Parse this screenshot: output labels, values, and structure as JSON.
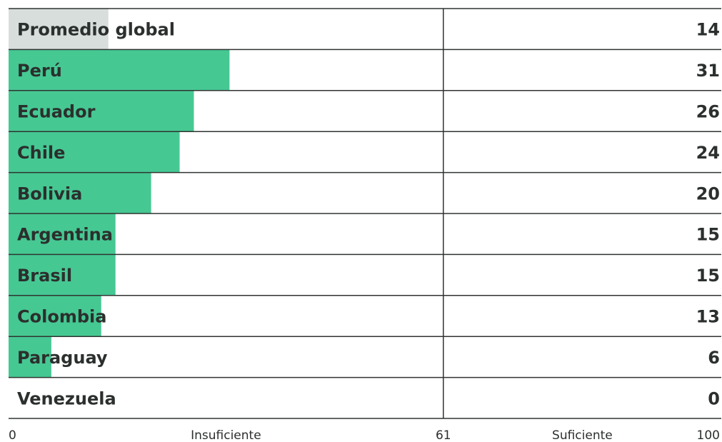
{
  "colors": {
    "bar": "#46c893",
    "average_bar": "#d7dedb",
    "grid": "#2f3330",
    "text": "#2b2f2d"
  },
  "chart_data": {
    "type": "bar",
    "orientation": "horizontal",
    "categories": [
      "Promedio global",
      "Perú",
      "Ecuador",
      "Chile",
      "Bolivia",
      "Argentina",
      "Brasil",
      "Colombia",
      "Paraguay",
      "Venezuela"
    ],
    "values": [
      14,
      31,
      26,
      24,
      20,
      15,
      15,
      13,
      6,
      0
    ],
    "xlim": [
      0,
      100
    ],
    "threshold": 61,
    "axis_ticks": [
      {
        "label": "0",
        "value": 0
      },
      {
        "label": "Insuficiente",
        "value": 30.5
      },
      {
        "label": "61",
        "value": 61
      },
      {
        "label": "Suficiente",
        "value": 80.5
      },
      {
        "label": "100",
        "value": 100
      }
    ],
    "grid": true,
    "highlight_category": "Promedio global"
  }
}
